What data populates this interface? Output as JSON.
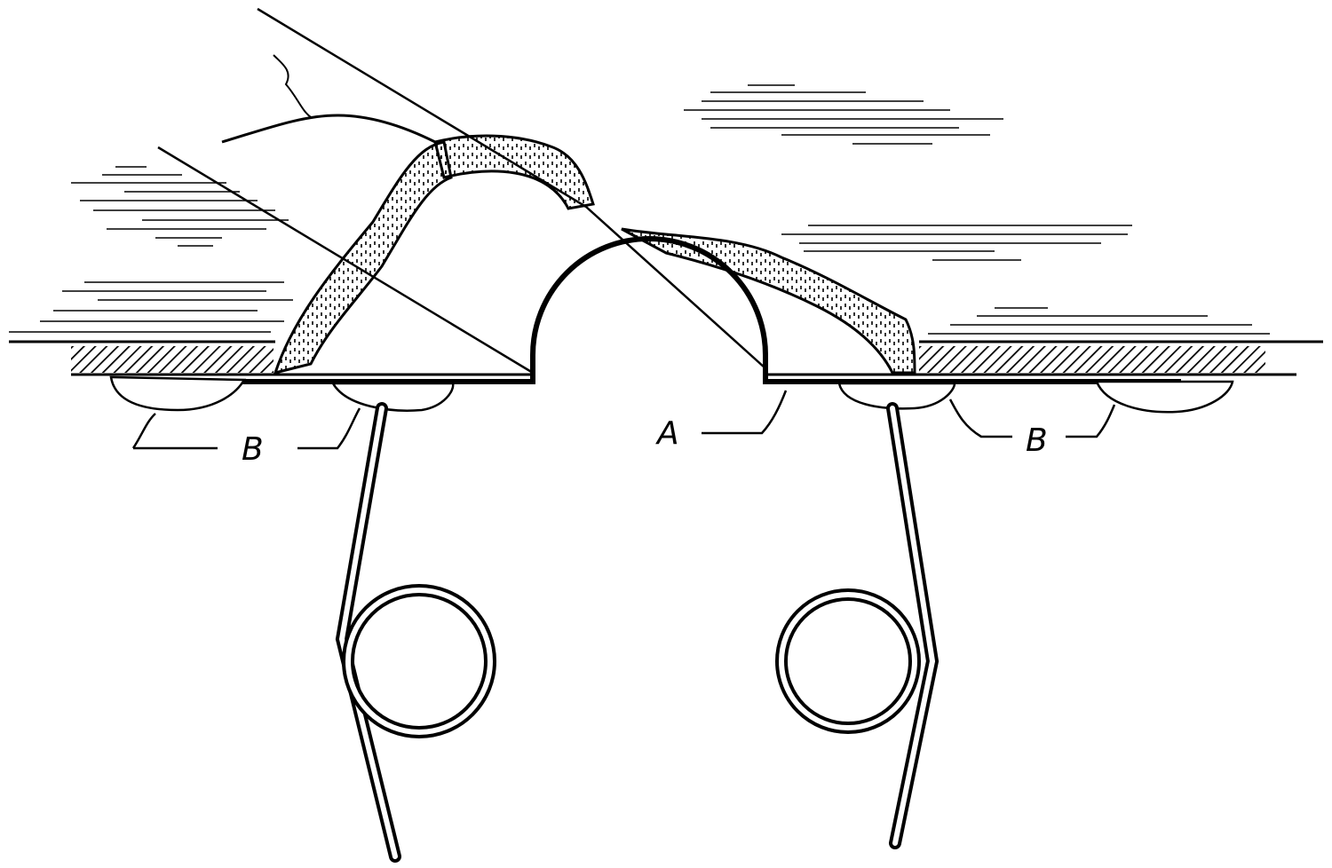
{
  "figure": {
    "labels": {
      "a": "A",
      "b_left": "B",
      "b_right": "B"
    },
    "colors": {
      "ink": "#000000",
      "paper": "#ffffff"
    }
  }
}
